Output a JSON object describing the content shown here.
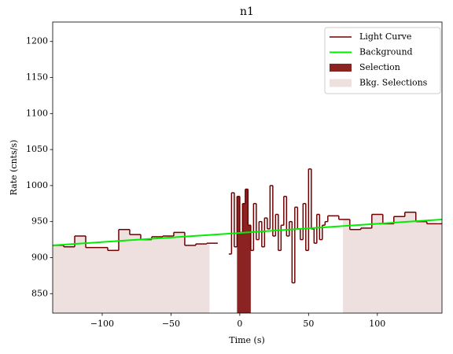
{
  "chart_data": {
    "type": "step",
    "title": "n1",
    "xlabel": "Time (s)",
    "ylabel": "Rate (cnts/s)",
    "xlim": [
      -136,
      147
    ],
    "ylim": [
      823,
      1227
    ],
    "xticks": [
      {
        "value": -100,
        "label": "−100"
      },
      {
        "value": -50,
        "label": "−50"
      },
      0,
      50,
      100
    ],
    "yticks": [
      850,
      900,
      950,
      1000,
      1050,
      1100,
      1150,
      1200
    ],
    "legend": "upper right",
    "series": [
      {
        "name": "Light Curve",
        "color": "#700000",
        "bins": [
          -136,
          -128,
          -120,
          -112,
          -104,
          -96,
          -88,
          -80,
          -72,
          -64,
          -56,
          -48,
          -40,
          -32,
          -24,
          -16,
          -8,
          -6,
          -4,
          -2,
          0,
          2,
          4,
          6,
          8,
          10,
          12,
          14,
          16,
          18,
          20,
          22,
          24,
          26,
          28,
          30,
          32,
          34,
          36,
          38,
          40,
          42,
          44,
          46,
          48,
          50,
          52,
          54,
          56,
          58,
          60,
          62,
          64,
          72,
          80,
          88,
          96,
          104,
          112,
          120,
          128,
          136,
          144,
          147
        ],
        "values": [
          917,
          915,
          930,
          914,
          914,
          910,
          939,
          932,
          925,
          929,
          930,
          935,
          917,
          919,
          920,
          null,
          905,
          990,
          915,
          985,
          935,
          975,
          995,
          945,
          910,
          975,
          925,
          950,
          915,
          955,
          940,
          1000,
          930,
          960,
          910,
          945,
          985,
          930,
          950,
          865,
          970,
          940,
          925,
          975,
          910,
          1023,
          940,
          920,
          960,
          925,
          945,
          950,
          958,
          953,
          939,
          941,
          960,
          947,
          957,
          963,
          950,
          947,
          947
        ]
      },
      {
        "name": "Background",
        "color": "#00ee00",
        "x": [
          -136,
          147
        ],
        "values": [
          917,
          953
        ]
      }
    ],
    "selection": {
      "name": "Selection",
      "color": "#8b2323",
      "range": [
        -2,
        8
      ]
    },
    "bkg_selections": {
      "name": "Bkg. Selections",
      "color": "#efe0e0",
      "ranges": [
        [
          -136,
          -22
        ],
        [
          75,
          147
        ]
      ]
    }
  }
}
